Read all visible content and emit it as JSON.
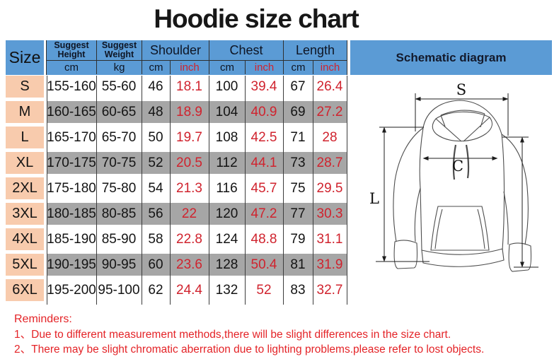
{
  "title": "Hoodie size chart",
  "colors": {
    "header_blue": "#5B9BD5",
    "size_peach": "#F8CBAD",
    "row_gray": "#A6A6A6",
    "table_red": "#D0232E",
    "reminder_red": "#E42327"
  },
  "table": {
    "header": {
      "size": "Size",
      "schematic": "Schematic diagram",
      "groups": [
        {
          "label": "Suggest Height",
          "sub": [
            "cm"
          ]
        },
        {
          "label": "Suggest Weight",
          "sub": [
            "kg"
          ]
        },
        {
          "label": "Shoulder",
          "sub": [
            "cm",
            "inch"
          ]
        },
        {
          "label": "Chest",
          "sub": [
            "cm",
            "inch"
          ]
        },
        {
          "label": "Length",
          "sub": [
            "cm",
            "inch"
          ]
        }
      ]
    },
    "rows": [
      {
        "size": "S",
        "cells": [
          "155-160",
          "55-60",
          "46",
          "18.1",
          "100",
          "39.4",
          "67",
          "26.4"
        ]
      },
      {
        "size": "M",
        "cells": [
          "160-165",
          "60-65",
          "48",
          "18.9",
          "104",
          "40.9",
          "69",
          "27.2"
        ]
      },
      {
        "size": "L",
        "cells": [
          "165-170",
          "65-70",
          "50",
          "19.7",
          "108",
          "42.5",
          "71",
          "28"
        ]
      },
      {
        "size": "XL",
        "cells": [
          "170-175",
          "70-75",
          "52",
          "20.5",
          "112",
          "44.1",
          "73",
          "28.7"
        ]
      },
      {
        "size": "2XL",
        "cells": [
          "175-180",
          "75-80",
          "54",
          "21.3",
          "116",
          "45.7",
          "75",
          "29.5"
        ]
      },
      {
        "size": "3XL",
        "cells": [
          "180-185",
          "80-85",
          "56",
          "22",
          "120",
          "47.2",
          "77",
          "30.3"
        ]
      },
      {
        "size": "4XL",
        "cells": [
          "185-190",
          "85-90",
          "58",
          "22.8",
          "124",
          "48.8",
          "79",
          "31.1"
        ]
      },
      {
        "size": "5XL",
        "cells": [
          "190-195",
          "90-95",
          "60",
          "23.6",
          "128",
          "50.4",
          "81",
          "31.9"
        ]
      },
      {
        "size": "6XL",
        "cells": [
          "195-200",
          "95-100",
          "62",
          "24.4",
          "132",
          "52",
          "83",
          "32.7"
        ]
      }
    ]
  },
  "diagram": {
    "labels": {
      "shoulder": "S",
      "chest": "C",
      "length": "L"
    }
  },
  "reminders": {
    "heading": "Reminders:",
    "items": [
      "1、Due to different measurement methods,there will be slight differences in the size chart.",
      "2、There may be slight chromatic aberration due to lighting problems.please refer to lost objects."
    ]
  }
}
